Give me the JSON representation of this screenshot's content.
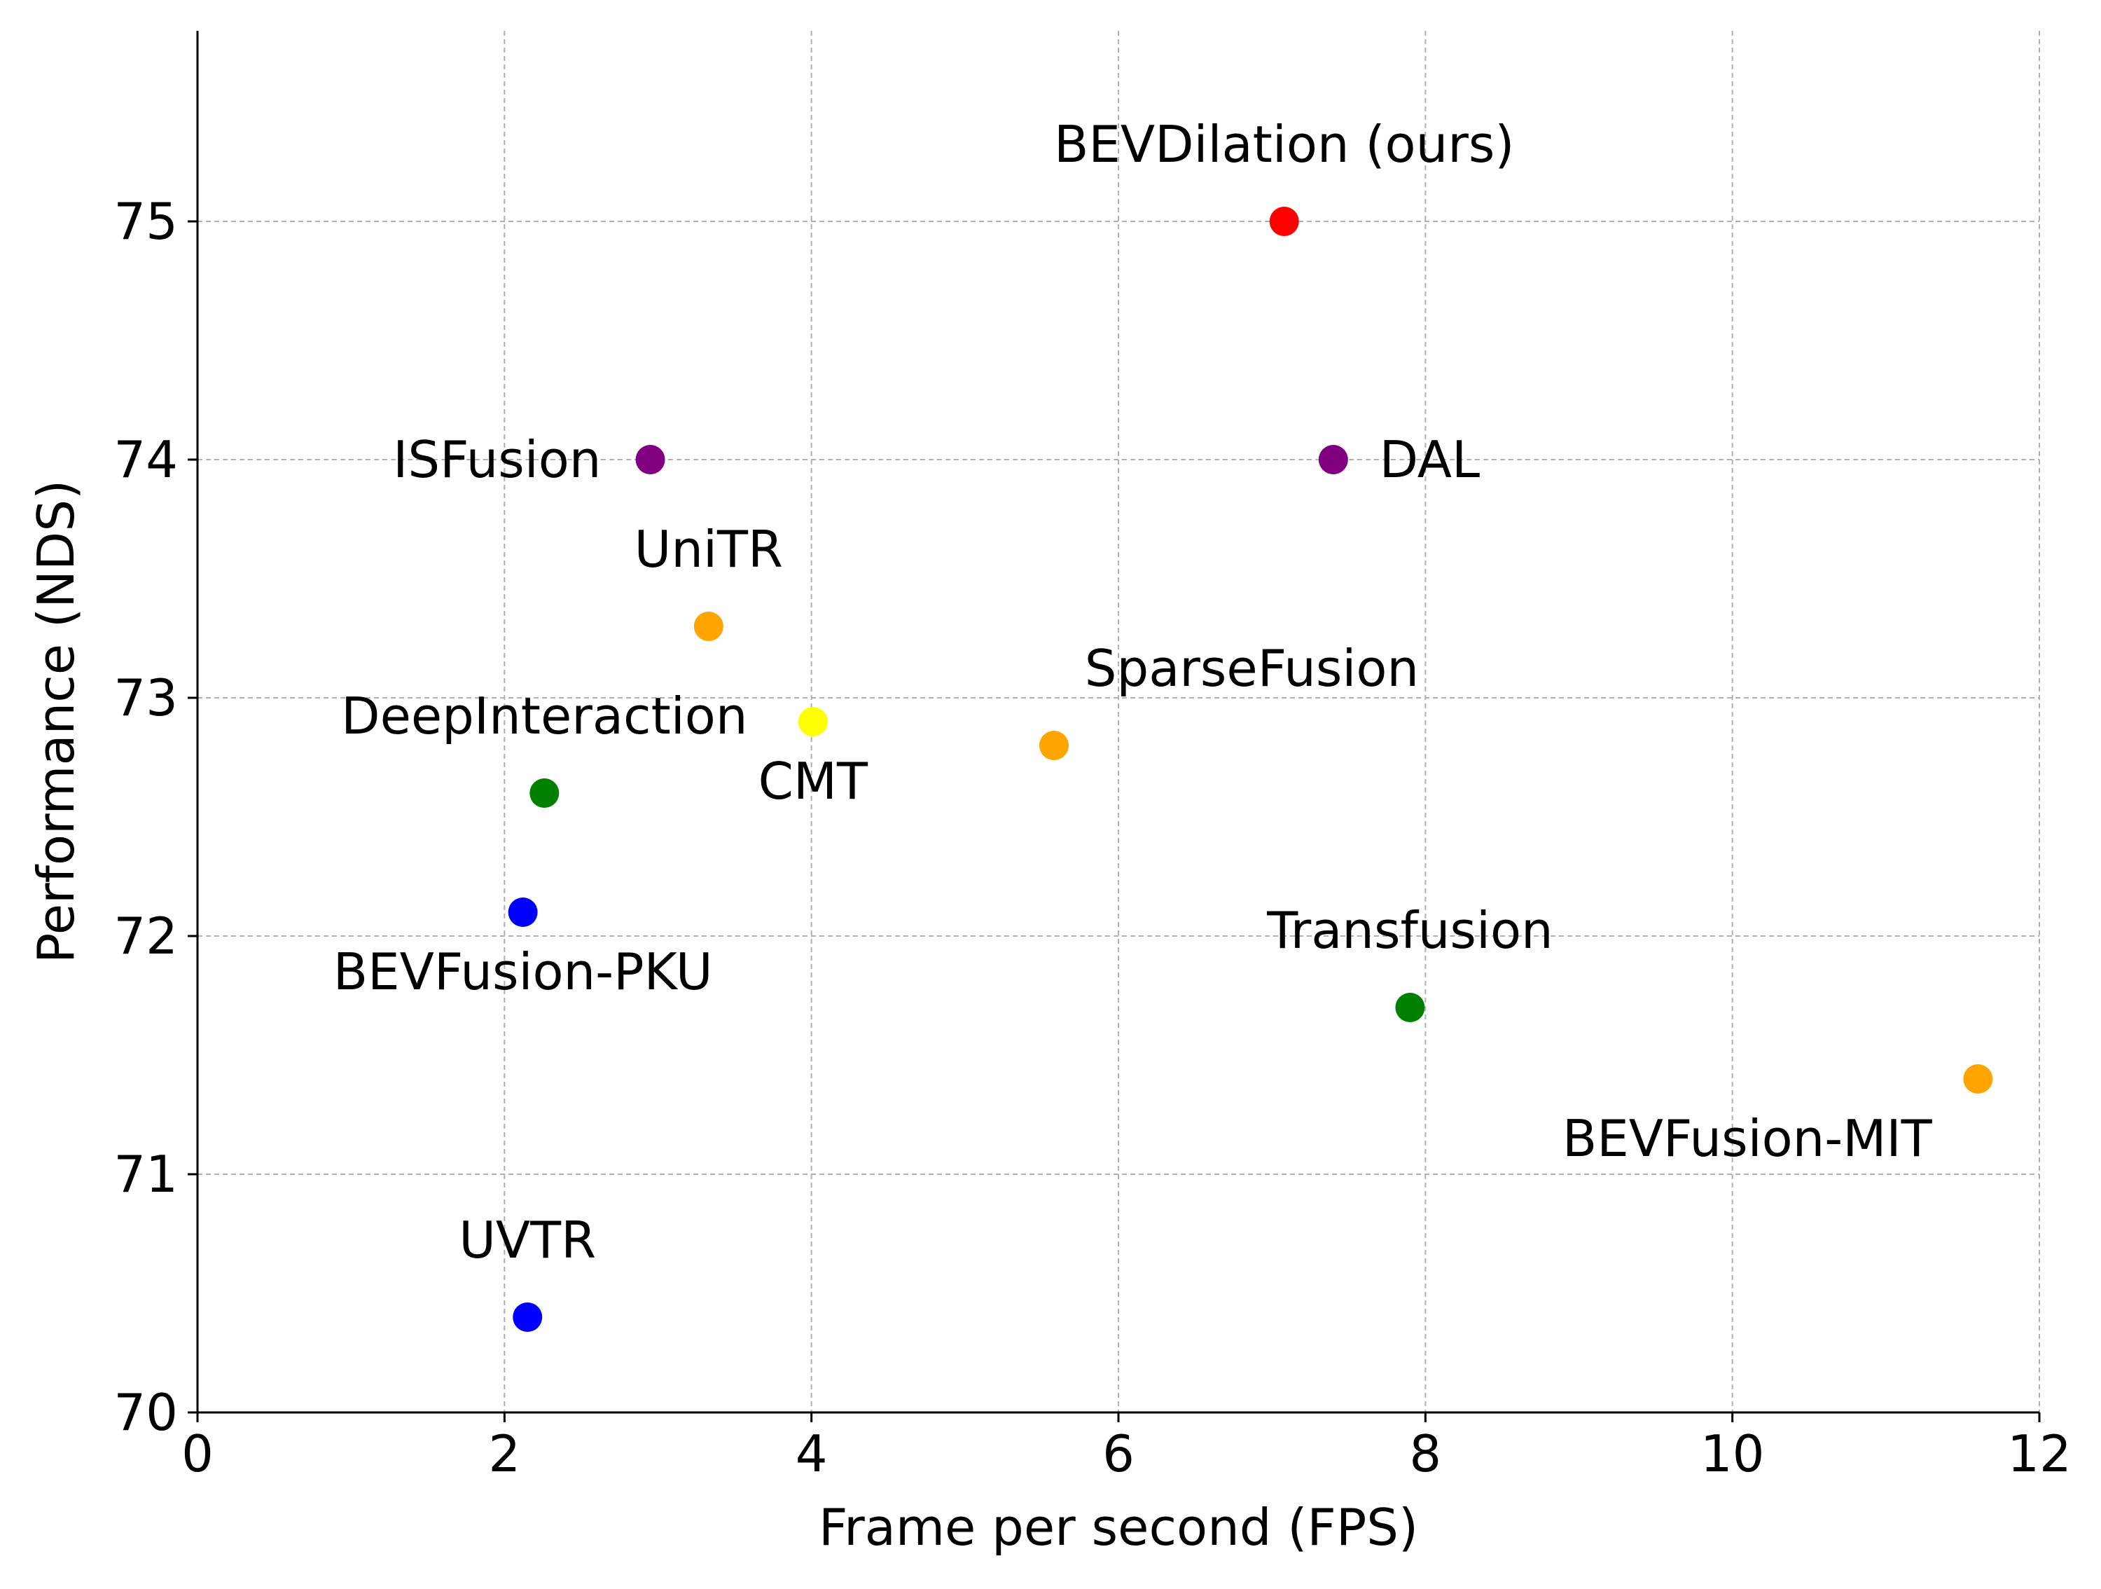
{
  "chart_data": {
    "type": "scatter",
    "title": "",
    "xlabel": "Frame per second (FPS)",
    "ylabel": "Performance (NDS)",
    "xlim": [
      0,
      12
    ],
    "ylim": [
      70,
      75.8
    ],
    "xticks": [
      0,
      2,
      4,
      6,
      8,
      10,
      12
    ],
    "yticks": [
      70,
      71,
      72,
      73,
      74,
      75
    ],
    "grid": true,
    "points": [
      {
        "name": "BEVDilation (ours)",
        "x": 7.08,
        "y": 75.0,
        "color": "#ff0000",
        "label_anchor": "middle",
        "label_dx": 0,
        "label_dy": 1.0
      },
      {
        "name": "ISFusion",
        "x": 2.95,
        "y": 74.0,
        "color": "#800080",
        "label_anchor": "end",
        "label_dx": -0.32,
        "label_dy": 0.0
      },
      {
        "name": "DAL",
        "x": 7.4,
        "y": 74.0,
        "color": "#800080",
        "label_anchor": "start",
        "label_dx": 0.3,
        "label_dy": 0.0
      },
      {
        "name": "UniTR",
        "x": 3.33,
        "y": 73.3,
        "color": "#ffa500",
        "label_anchor": "middle",
        "label_dx": 0,
        "label_dy": 1.0
      },
      {
        "name": "CMT",
        "x": 4.01,
        "y": 72.9,
        "color": "#ffff00",
        "label_anchor": "middle",
        "label_dx": 0,
        "label_dy": -1.0
      },
      {
        "name": "DeepInteraction",
        "x": 2.26,
        "y": 72.6,
        "color": "#008000",
        "label_anchor": "middle",
        "label_dx": 0,
        "label_dy": 1.0
      },
      {
        "name": "SparseFusion",
        "x": 5.58,
        "y": 72.8,
        "color": "#ffa500",
        "label_anchor": "start",
        "label_dx": 0.2,
        "label_dy": 1.0
      },
      {
        "name": "BEVFusion-PKU",
        "x": 2.12,
        "y": 72.1,
        "color": "#0000ff",
        "label_anchor": "middle",
        "label_dx": 0,
        "label_dy": -1.0
      },
      {
        "name": "Transfusion",
        "x": 7.9,
        "y": 71.7,
        "color": "#008000",
        "label_anchor": "middle",
        "label_dx": 0,
        "label_dy": 1.0
      },
      {
        "name": "BEVFusion-MIT",
        "x": 11.6,
        "y": 71.4,
        "color": "#ffa500",
        "label_anchor": "end",
        "label_dx": -0.3,
        "label_dy": -1.0
      },
      {
        "name": "UVTR",
        "x": 2.15,
        "y": 70.4,
        "color": "#0000ff",
        "label_anchor": "middle",
        "label_dx": 0,
        "label_dy": 1.0
      }
    ]
  }
}
